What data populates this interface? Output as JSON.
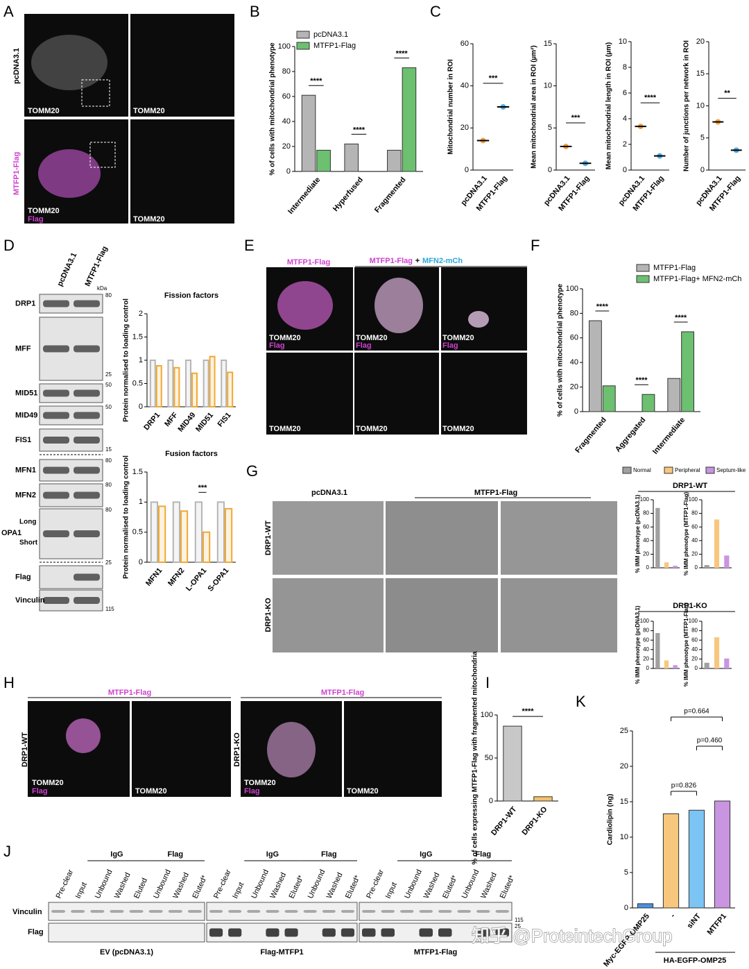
{
  "panel_letters": [
    "A",
    "B",
    "C",
    "D",
    "E",
    "F",
    "G",
    "H",
    "I",
    "J",
    "K"
  ],
  "panel_a": {
    "row_labels": [
      "pcDNA3.1",
      "MTFP1-Flag"
    ],
    "image_labels": [
      "TOMM20",
      "TOMM20",
      "TOMM20",
      "Flag",
      "TOMM20"
    ]
  },
  "panel_d": {
    "lanes": [
      "pcDNA3.1",
      "MTFP1-Flag"
    ],
    "unit": "kDa",
    "proteins": [
      "DRP1",
      "MFF",
      "MID51",
      "MID49",
      "FIS1",
      "MFN1",
      "MFN2",
      "OPA1",
      "Flag",
      "Vinculin"
    ],
    "opa1_forms": [
      "Long",
      "Short"
    ],
    "markers": [
      80,
      25,
      50,
      50,
      15,
      80,
      80,
      80,
      25,
      115
    ]
  },
  "panel_e": {
    "header_left": "MTFP1-Flag",
    "header_right": [
      "MTFP1-Flag",
      "+",
      "MFN2-mCh"
    ],
    "image_labels": [
      "TOMM20",
      "Flag",
      "TOMM20",
      "Flag",
      "TOMM20",
      "Flag",
      "TOMM20",
      "TOMM20",
      "TOMM20"
    ]
  },
  "panel_g": {
    "column_labels": [
      "pcDNA3.1",
      "MTFP1-Flag"
    ],
    "row_labels": [
      "DRP1-WT",
      "DRP1-KO"
    ],
    "legend": [
      {
        "name": "Normal",
        "color": "#a0a0a0"
      },
      {
        "name": "Peripheral",
        "color": "#f8c77e"
      },
      {
        "name": "Septum-like",
        "color": "#c994e0"
      }
    ],
    "group_titles": [
      "DRP1-WT",
      "DRP1-KO"
    ]
  },
  "panel_h": {
    "headers": [
      "MTFP1-Flag",
      "MTFP1-Flag"
    ],
    "row_labels": [
      "DRP1-WT",
      "DRP1-KO"
    ],
    "image_labels": [
      "TOMM20",
      "Flag",
      "TOMM20",
      "TOMM20",
      "Flag",
      "TOMM20"
    ]
  },
  "panel_j": {
    "group_labels": [
      "IgG",
      "Flag",
      "IgG",
      "Flag",
      "IgG",
      "Flag"
    ],
    "lanes": [
      [
        "Pre-clear",
        "Input",
        "Unbound",
        "Washed",
        "Eluted",
        "Unbound",
        "Washed",
        "Eluted*"
      ],
      [
        "Pre-clear",
        "Input",
        "Unbound",
        "Washed",
        "Eluted*",
        "Unbound",
        "Washed",
        "Eluted*"
      ],
      [
        "Pre-clear",
        "Input",
        "Unbound",
        "Washed",
        "Eluted*",
        "Unbound",
        "Washed",
        "Eluted*"
      ]
    ],
    "rows": [
      "Vinculin",
      "Flag"
    ],
    "markers": [
      115,
      25
    ],
    "blots": [
      "EV (pcDNA3.1)",
      "Flag-MTFP1",
      "MTFP1-Flag"
    ]
  },
  "panel_k": {
    "group_label": "HA-EGFP-OMP25"
  },
  "watermark": "知乎 @ProteintechGroup",
  "chart_data": [
    {
      "type": "bar",
      "y_label": "% of cells with mitochondrial phenotype",
      "categories": [
        "Intermediate",
        "Hyperfused",
        "Fragmented"
      ],
      "series": [
        {
          "name": "pcDNA3.1",
          "color": "#b5b5b5",
          "values": [
            61,
            22,
            17
          ]
        },
        {
          "name": "MTFP1-Flag",
          "color": "#6cc070",
          "values": [
            17,
            0,
            83
          ]
        }
      ],
      "ylim": [
        0,
        100
      ],
      "yticks": [
        0,
        20,
        40,
        60,
        80,
        100
      ],
      "significance": [
        "****",
        "****",
        "****"
      ]
    },
    {
      "type": "dot",
      "y_label": "Mitochondrial number in ROI",
      "categories": [
        "pcDNA3.1",
        "MTFP1-Flag"
      ],
      "values": [
        14,
        30
      ],
      "colors": [
        "#f0a040",
        "#5aa9e0"
      ],
      "ylim": [
        0,
        60
      ],
      "yticks": [
        0,
        20,
        40,
        60
      ],
      "significance": "***"
    },
    {
      "type": "dot",
      "y_label": "Mean mitochondrial area in ROI (µm²)",
      "categories": [
        "pcDNA3.1",
        "MTFP1-Flag"
      ],
      "values": [
        2.8,
        0.8
      ],
      "colors": [
        "#f0a040",
        "#5aa9e0"
      ],
      "ylim": [
        0,
        15
      ],
      "yticks": [
        0,
        5,
        10,
        15
      ],
      "significance": "***"
    },
    {
      "type": "dot",
      "y_label": "Mean mitochondrial length in ROI (µm)",
      "categories": [
        "pcDNA3.1",
        "MTFP1-Flag"
      ],
      "values": [
        3.4,
        1.1
      ],
      "colors": [
        "#f0a040",
        "#5aa9e0"
      ],
      "ylim": [
        0,
        10
      ],
      "yticks": [
        0,
        2,
        4,
        6,
        8,
        10
      ],
      "significance": "****"
    },
    {
      "type": "dot",
      "y_label": "Number of junctions per network in ROI",
      "categories": [
        "pcDNA3.1",
        "MTFP1-Flag"
      ],
      "values": [
        7.5,
        3.1
      ],
      "colors": [
        "#f0a040",
        "#5aa9e0"
      ],
      "ylim": [
        0,
        20
      ],
      "yticks": [
        0,
        5,
        10,
        15,
        20
      ],
      "significance": "**"
    },
    {
      "type": "bar",
      "bar_style": "outline",
      "title": "Fission factors",
      "y_label": "Protein normalised to loading control",
      "categories": [
        "DRP1",
        "MFF",
        "MID49",
        "MID51",
        "FIS1"
      ],
      "series": [
        {
          "color": "#b5b5b5",
          "values": [
            1,
            1,
            1,
            1,
            1
          ]
        },
        {
          "color": "#f0a830",
          "values": [
            0.88,
            0.84,
            0.72,
            1.08,
            0.74
          ]
        }
      ],
      "ylim": [
        0,
        2
      ],
      "yticks": [
        0,
        0.5,
        1,
        1.5,
        2
      ]
    },
    {
      "type": "bar",
      "bar_style": "outline",
      "title": "Fusion factors",
      "y_label": "Protein normalised to loading control",
      "categories": [
        "MFN1",
        "MFN2",
        "L-OPA1",
        "S-OPA1"
      ],
      "series": [
        {
          "color": "#b5b5b5",
          "values": [
            1,
            1,
            1,
            1
          ]
        },
        {
          "color": "#f0a830",
          "values": [
            0.93,
            0.85,
            0.5,
            0.89
          ]
        }
      ],
      "ylim": [
        0,
        1.5
      ],
      "yticks": [
        0,
        0.5,
        1,
        1.5
      ],
      "significance": [
        null,
        null,
        "***",
        null
      ]
    },
    {
      "type": "bar",
      "y_label": "% of cells with mitochondrial phenotype",
      "categories": [
        "Fragmented",
        "Aggregated",
        "Intermediate"
      ],
      "series": [
        {
          "name": "MTFP1-Flag",
          "color": "#b5b5b5",
          "values": [
            74,
            0,
            27
          ]
        },
        {
          "name": "MTFP1-Flag+ MFN2-mCh",
          "color": "#6cc070",
          "values": [
            21,
            14,
            65
          ]
        }
      ],
      "ylim": [
        0,
        100
      ],
      "yticks": [
        0,
        20,
        40,
        60,
        80,
        100
      ],
      "significance": [
        "****",
        "****",
        "****"
      ]
    },
    {
      "type": "bar",
      "y_label": "% IMM phenotype (pcDNA3.1)",
      "categories": [
        null,
        null,
        null
      ],
      "values": [
        88,
        8,
        3
      ],
      "colors": [
        "#a0a0a0",
        "#f8c77e",
        "#c994e0"
      ],
      "ylim": [
        0,
        100
      ],
      "yticks": [
        0,
        20,
        40,
        60,
        80,
        100
      ]
    },
    {
      "type": "bar",
      "y_label": "% IMM phenotype (MTFP1-Flag)",
      "categories": [
        null,
        null,
        null
      ],
      "values": [
        4,
        71,
        18
      ],
      "colors": [
        "#a0a0a0",
        "#f8c77e",
        "#c994e0"
      ],
      "ylim": [
        0,
        100
      ],
      "yticks": [
        0,
        20,
        40,
        60,
        80,
        100
      ]
    },
    {
      "type": "bar",
      "y_label": "% IMM phenotype (pcDNA3.1)",
      "categories": [
        null,
        null,
        null
      ],
      "values": [
        75,
        17,
        7
      ],
      "colors": [
        "#a0a0a0",
        "#f8c77e",
        "#c994e0"
      ],
      "ylim": [
        0,
        100
      ],
      "yticks": [
        0,
        20,
        40,
        60,
        80,
        100
      ]
    },
    {
      "type": "bar",
      "y_label": "% IMM phenotype (MTFP1-Flag)",
      "categories": [
        null,
        null,
        null
      ],
      "values": [
        12,
        66,
        21
      ],
      "colors": [
        "#a0a0a0",
        "#f8c77e",
        "#c994e0"
      ],
      "ylim": [
        0,
        100
      ],
      "yticks": [
        0,
        20,
        40,
        60,
        80,
        100
      ]
    },
    {
      "type": "bar",
      "y_label": "% of cells expressing MTFP1-Flag with fragmented mitochondria",
      "categories": [
        "DRP1-WT",
        "DRP1-KO"
      ],
      "values": [
        87,
        5
      ],
      "colors": [
        "#c8c8c8",
        "#f5c26b"
      ],
      "ylim": [
        0,
        100
      ],
      "yticks": [
        0,
        50,
        100
      ],
      "significance": "****"
    },
    {
      "type": "bar",
      "y_label": "Cardiolipin (ng)",
      "categories": [
        "Myc-EGFP-OMP25",
        "-",
        "siNT",
        "MTFP1"
      ],
      "values": [
        0.6,
        13.3,
        13.8,
        15.1
      ],
      "colors": [
        "#4a90e2",
        "#f8c77e",
        "#7cc4f4",
        "#c994e0"
      ],
      "ylim": [
        0,
        25
      ],
      "yticks": [
        0,
        5,
        10,
        15,
        20,
        25
      ],
      "p_values": [
        "p=0.826",
        "p=0.460",
        "p=0.664"
      ]
    }
  ]
}
